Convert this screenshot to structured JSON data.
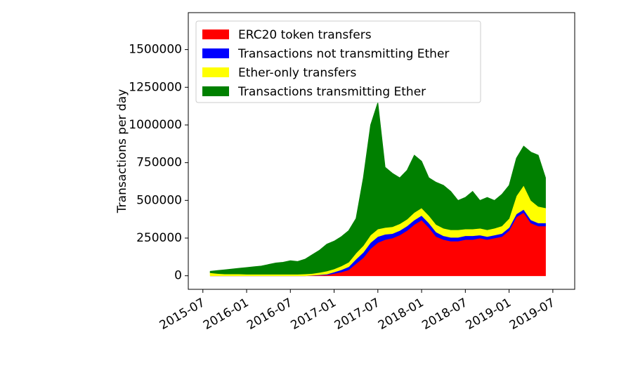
{
  "chart_data": {
    "type": "stackedarea",
    "y_label": "Transactions per day",
    "x": [
      "2015-08",
      "2015-09",
      "2015-10",
      "2015-11",
      "2015-12",
      "2016-01",
      "2016-02",
      "2016-03",
      "2016-04",
      "2016-05",
      "2016-06",
      "2016-07",
      "2016-08",
      "2016-09",
      "2016-10",
      "2016-11",
      "2016-12",
      "2017-01",
      "2017-02",
      "2017-03",
      "2017-04",
      "2017-05",
      "2017-06",
      "2017-07",
      "2017-08",
      "2017-09",
      "2017-10",
      "2017-11",
      "2017-12",
      "2018-01",
      "2018-02",
      "2018-03",
      "2018-04",
      "2018-05",
      "2018-06",
      "2018-07",
      "2018-08",
      "2018-09",
      "2018-10",
      "2018-11",
      "2018-12",
      "2019-01",
      "2019-02",
      "2019-03",
      "2019-04",
      "2019-05",
      "2019-06"
    ],
    "series": [
      {
        "name": "ERC20 token transfers",
        "color": "#ff0000",
        "values": [
          0,
          0,
          0,
          0,
          0,
          0,
          0,
          0,
          0,
          0,
          0,
          0,
          0,
          0,
          2000,
          4000,
          6000,
          15000,
          25000,
          40000,
          80000,
          120000,
          180000,
          220000,
          240000,
          250000,
          270000,
          300000,
          340000,
          370000,
          320000,
          260000,
          240000,
          230000,
          230000,
          240000,
          240000,
          250000,
          240000,
          250000,
          260000,
          300000,
          390000,
          420000,
          350000,
          330000,
          330000
        ]
      },
      {
        "name": "Transactions not transmitting Ether",
        "color": "#0000ff",
        "values": [
          0,
          0,
          0,
          0,
          0,
          0,
          0,
          0,
          0,
          0,
          0,
          0,
          0,
          0,
          1000,
          3000,
          5000,
          10000,
          15000,
          20000,
          30000,
          35000,
          40000,
          40000,
          35000,
          30000,
          30000,
          30000,
          30000,
          30000,
          30000,
          30000,
          25000,
          25000,
          25000,
          25000,
          25000,
          20000,
          20000,
          20000,
          20000,
          20000,
          20000,
          20000,
          20000,
          20000,
          20000
        ]
      },
      {
        "name": "Ether-only transfers",
        "color": "#ffff00",
        "values": [
          20000,
          15000,
          12000,
          12000,
          12000,
          10000,
          10000,
          10000,
          10000,
          10000,
          10000,
          10000,
          10000,
          12000,
          12000,
          15000,
          20000,
          20000,
          25000,
          30000,
          40000,
          45000,
          50000,
          50000,
          45000,
          45000,
          45000,
          45000,
          50000,
          50000,
          50000,
          50000,
          50000,
          50000,
          50000,
          45000,
          45000,
          45000,
          45000,
          45000,
          50000,
          60000,
          120000,
          160000,
          130000,
          110000,
          100000
        ]
      },
      {
        "name": "Transactions transmitting Ether",
        "color": "#008000",
        "values": [
          10000,
          20000,
          28000,
          33000,
          38000,
          45000,
          50000,
          55000,
          65000,
          75000,
          80000,
          90000,
          85000,
          98000,
          125000,
          148000,
          179000,
          185000,
          195000,
          210000,
          230000,
          450000,
          730000,
          840000,
          400000,
          355000,
          305000,
          325000,
          380000,
          310000,
          250000,
          280000,
          285000,
          255000,
          195000,
          210000,
          250000,
          185000,
          215000,
          185000,
          210000,
          220000,
          250000,
          260000,
          320000,
          340000,
          200000
        ]
      }
    ],
    "xlim": [
      "2015-05",
      "2019-10"
    ],
    "xticks": [
      "2015-07",
      "2016-01",
      "2016-07",
      "2017-01",
      "2017-07",
      "2018-01",
      "2018-07",
      "2019-01",
      "2019-07"
    ],
    "ylim": [
      -90000,
      1745000
    ],
    "yticks": [
      0,
      250000,
      500000,
      750000,
      1000000,
      1250000,
      1500000
    ],
    "legend": "upper left"
  }
}
